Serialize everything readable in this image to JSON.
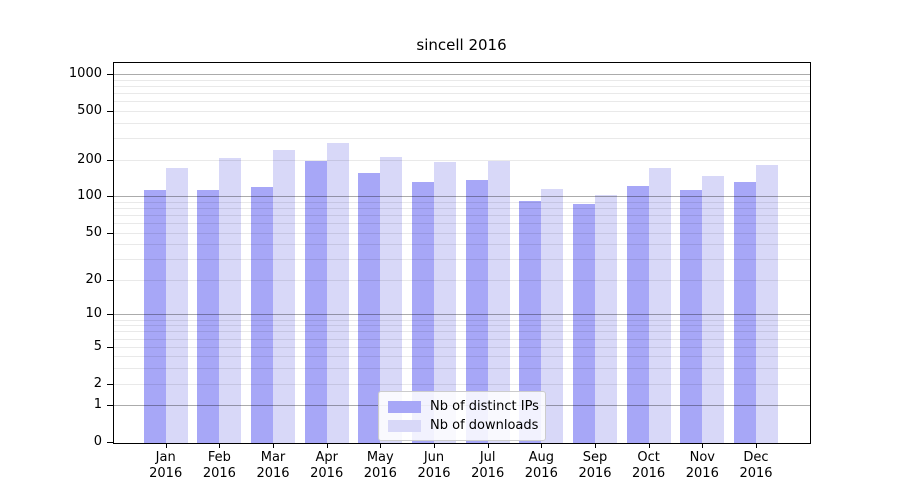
{
  "title": "sincell 2016",
  "chart_data": {
    "type": "bar",
    "title": "sincell 2016",
    "scale": "log10(value+1)",
    "grid": "both",
    "legend_position": "inside-bottom-center",
    "categories": [
      {
        "month": "Jan",
        "year": "2016"
      },
      {
        "month": "Feb",
        "year": "2016"
      },
      {
        "month": "Mar",
        "year": "2016"
      },
      {
        "month": "Apr",
        "year": "2016"
      },
      {
        "month": "May",
        "year": "2016"
      },
      {
        "month": "Jun",
        "year": "2016"
      },
      {
        "month": "Jul",
        "year": "2016"
      },
      {
        "month": "Aug",
        "year": "2016"
      },
      {
        "month": "Sep",
        "year": "2016"
      },
      {
        "month": "Oct",
        "year": "2016"
      },
      {
        "month": "Nov",
        "year": "2016"
      },
      {
        "month": "Dec",
        "year": "2016"
      }
    ],
    "series": [
      {
        "name": "Nb of distinct IPs",
        "color": "#a7a7f7",
        "values": [
          111,
          112,
          119,
          192,
          153,
          130,
          134,
          90,
          86,
          120,
          112,
          130
        ]
      },
      {
        "name": "Nb of downloads",
        "color": "#d8d8f8",
        "values": [
          168,
          204,
          237,
          274,
          210,
          191,
          192,
          115,
          102,
          170,
          147,
          178
        ]
      }
    ],
    "y_ticks": [
      1000,
      500,
      200,
      100,
      50,
      20,
      10,
      5,
      2,
      1,
      0
    ],
    "ylim": [
      0,
      1258
    ],
    "grid_major_values": [
      1,
      10,
      100,
      1000
    ],
    "grid_minor_values": [
      2,
      3,
      4,
      5,
      6,
      7,
      8,
      9,
      20,
      30,
      40,
      50,
      60,
      70,
      80,
      90,
      200,
      300,
      400,
      500,
      600,
      700,
      800,
      900
    ]
  }
}
